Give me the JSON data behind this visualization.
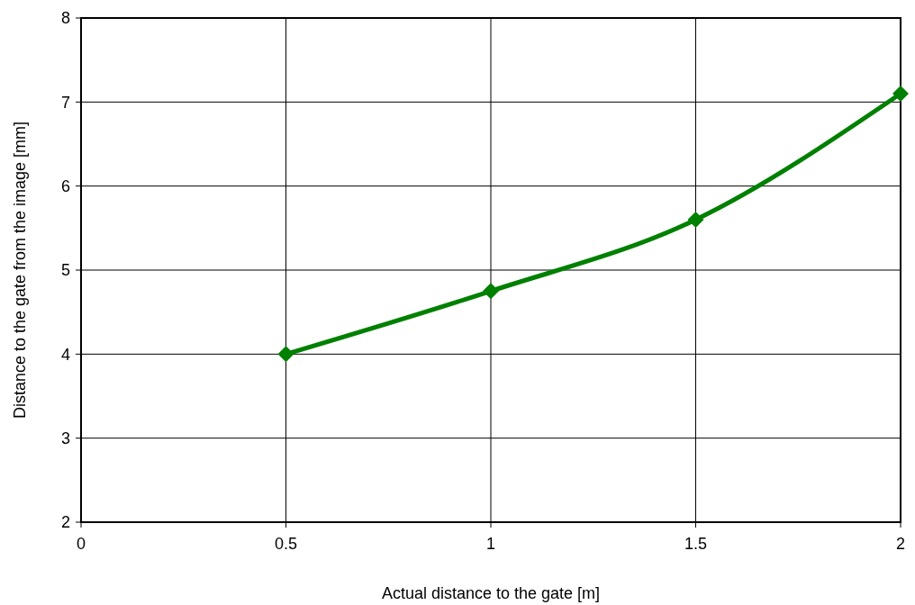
{
  "chart_data": {
    "type": "line",
    "xlabel": "Actual distance to the gate [m]",
    "ylabel": "Distance to the gate from the image [mm]",
    "x": [
      0.5,
      1,
      1.5,
      2
    ],
    "series": [
      {
        "color": "#008000",
        "values": [
          4,
          4.75,
          5.6,
          7.1
        ]
      }
    ],
    "xlim": [
      0,
      2
    ],
    "xticks": [
      0,
      0.5,
      1,
      1.5,
      2
    ],
    "ylim": [
      2,
      8
    ],
    "yticks": [
      2,
      3,
      4,
      5,
      6,
      7,
      8
    ],
    "grid": true,
    "marker": "diamond",
    "line_style": "solid"
  }
}
